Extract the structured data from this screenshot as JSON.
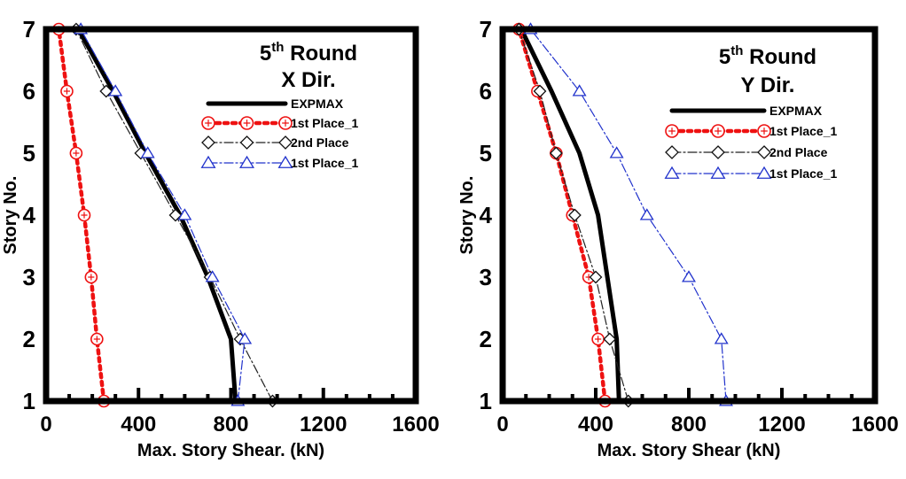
{
  "chart_data": [
    {
      "type": "line",
      "title_round": "5",
      "title_sup": "th",
      "title_rest": " Round",
      "title_dir": "X Dir.",
      "xlabel": "Max. Story Shear. (kN)",
      "ylabel": "Story No.",
      "xlim": [
        0,
        1600
      ],
      "ylim": [
        1,
        7
      ],
      "xticks": [
        0,
        400,
        800,
        1200,
        1600
      ],
      "yticks": [
        1,
        2,
        3,
        4,
        5,
        6,
        7
      ],
      "series": [
        {
          "name": "EXPMAX",
          "style": "solid-black",
          "points": [
            [
              820,
              1
            ],
            [
              800,
              2
            ],
            [
              700,
              3
            ],
            [
              580,
              4
            ],
            [
              430,
              5
            ],
            [
              290,
              6
            ],
            [
              140,
              7
            ]
          ]
        },
        {
          "name": "1st Place_1",
          "style": "red-dotted-circle",
          "points": [
            [
              250,
              1
            ],
            [
              220,
              2
            ],
            [
              195,
              3
            ],
            [
              165,
              4
            ],
            [
              130,
              5
            ],
            [
              90,
              6
            ],
            [
              55,
              7
            ]
          ]
        },
        {
          "name": "2nd Place",
          "style": "black-dashdot-diamond",
          "points": [
            [
              980,
              1
            ],
            [
              840,
              2
            ],
            [
              710,
              3
            ],
            [
              560,
              4
            ],
            [
              410,
              5
            ],
            [
              260,
              6
            ],
            [
              130,
              7
            ]
          ]
        },
        {
          "name": "1st Place_1",
          "style": "blue-dashdot-triangle",
          "points": [
            [
              830,
              1
            ],
            [
              860,
              2
            ],
            [
              720,
              3
            ],
            [
              600,
              4
            ],
            [
              440,
              5
            ],
            [
              300,
              6
            ],
            [
              150,
              7
            ]
          ]
        }
      ]
    },
    {
      "type": "line",
      "title_round": "5",
      "title_sup": "th",
      "title_rest": " Round",
      "title_dir": "Y Dir.",
      "xlabel": "Max. Story Shear (kN)",
      "ylabel": "Story No.",
      "xlim": [
        0,
        1600
      ],
      "ylim": [
        1,
        7
      ],
      "xticks": [
        0,
        400,
        800,
        1200,
        1600
      ],
      "yticks": [
        1,
        2,
        3,
        4,
        5,
        6,
        7
      ],
      "series": [
        {
          "name": "EXPMAX",
          "style": "solid-black",
          "points": [
            [
              500,
              1
            ],
            [
              490,
              2
            ],
            [
              450,
              3
            ],
            [
              410,
              4
            ],
            [
              330,
              5
            ],
            [
              210,
              6
            ],
            [
              80,
              7
            ]
          ]
        },
        {
          "name": "1st Place_1",
          "style": "red-dotted-circle",
          "points": [
            [
              440,
              1
            ],
            [
              410,
              2
            ],
            [
              370,
              3
            ],
            [
              300,
              4
            ],
            [
              230,
              5
            ],
            [
              150,
              6
            ],
            [
              70,
              7
            ]
          ]
        },
        {
          "name": "2nd Place",
          "style": "black-dashdot-diamond",
          "points": [
            [
              540,
              1
            ],
            [
              460,
              2
            ],
            [
              400,
              3
            ],
            [
              310,
              4
            ],
            [
              230,
              5
            ],
            [
              160,
              6
            ],
            [
              70,
              7
            ]
          ]
        },
        {
          "name": "1st Place_1",
          "style": "blue-dashdot-triangle",
          "points": [
            [
              960,
              1
            ],
            [
              940,
              2
            ],
            [
              800,
              3
            ],
            [
              620,
              4
            ],
            [
              490,
              5
            ],
            [
              330,
              6
            ],
            [
              120,
              7
            ]
          ]
        }
      ]
    }
  ]
}
